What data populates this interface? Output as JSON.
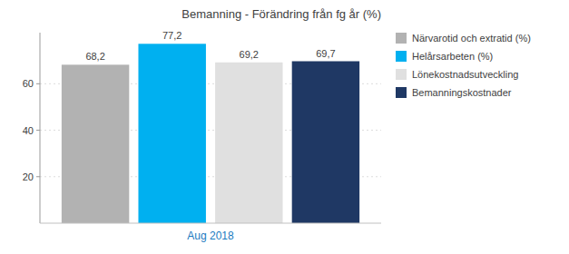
{
  "chart_data": {
    "type": "bar",
    "title": "Bemanning - Förändring från fg år (%)",
    "categories": [
      "Aug 2018"
    ],
    "series": [
      {
        "name": "Närvarotid och extratid (%)",
        "color": "#b2b2b2",
        "values": [
          68.2
        ],
        "value_labels": [
          "68,2"
        ]
      },
      {
        "name": "Helårsarbeten (%)",
        "color": "#00b0f0",
        "values": [
          77.2
        ],
        "value_labels": [
          "77,2"
        ]
      },
      {
        "name": "Lönekostnadsutveckling",
        "color": "#e0e0e0",
        "values": [
          69.2
        ],
        "value_labels": [
          "69,2"
        ]
      },
      {
        "name": "Bemanningskostnader",
        "color": "#1f3864",
        "values": [
          69.7
        ],
        "value_labels": [
          "69,7"
        ]
      }
    ],
    "ylim": [
      0,
      82
    ],
    "yticks": [
      20,
      40,
      60
    ],
    "grid": true,
    "legend": "right",
    "data_labels": true
  }
}
